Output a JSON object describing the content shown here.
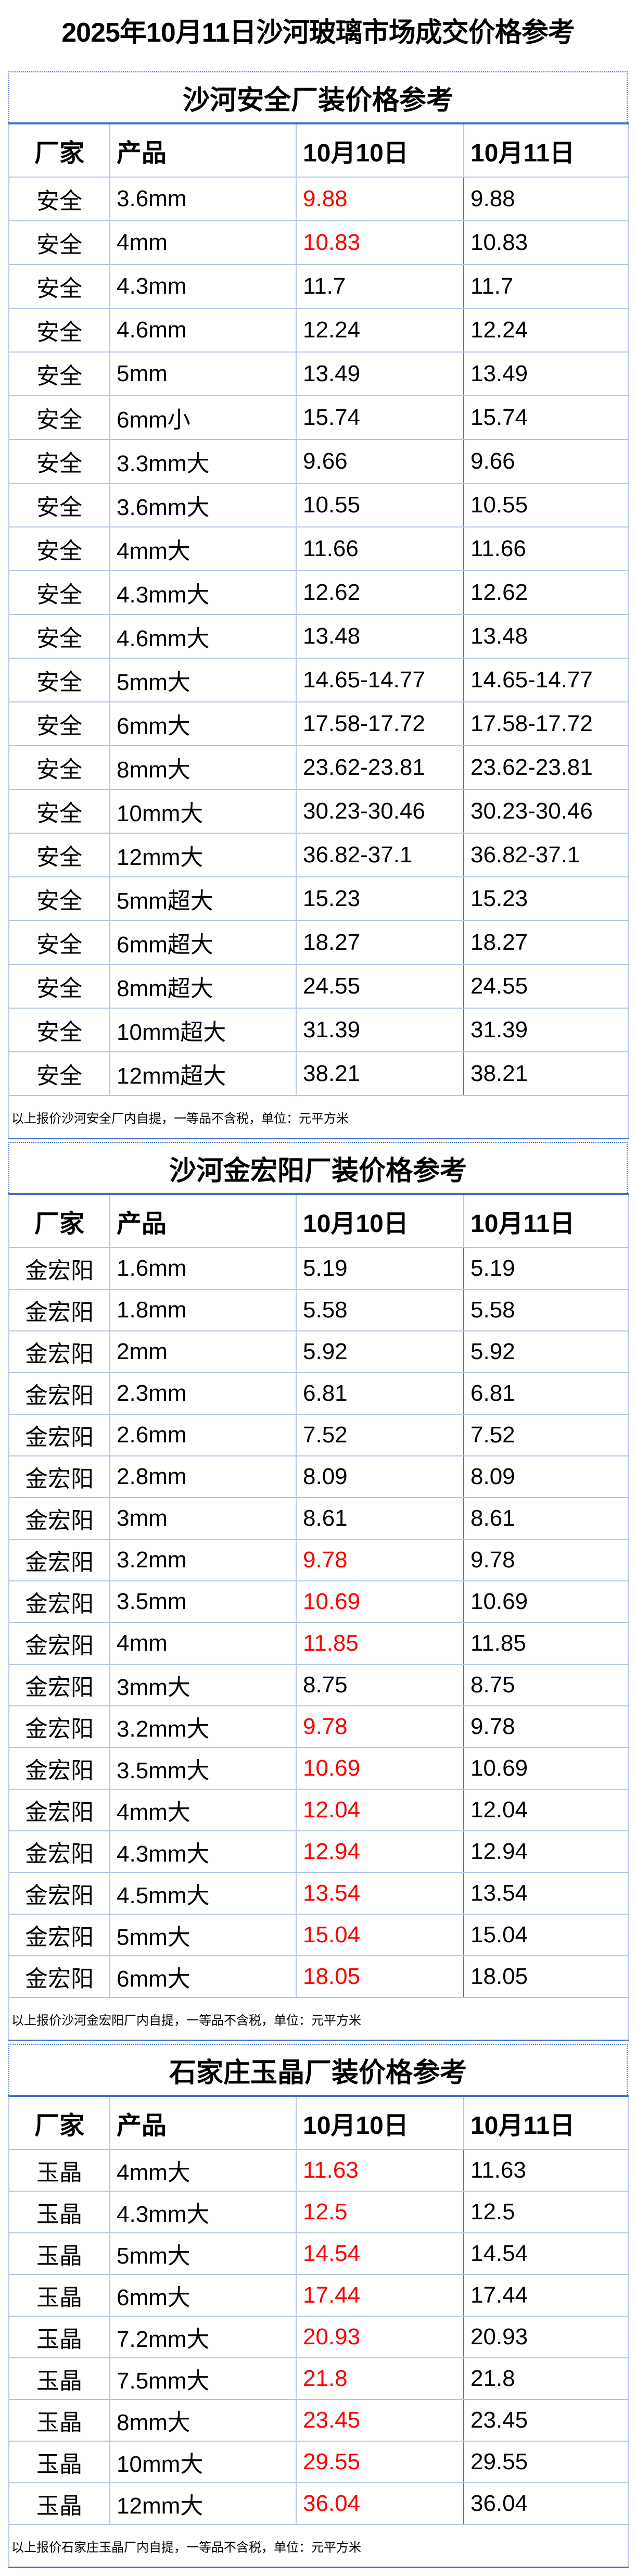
{
  "title": "2025年10月11日沙河玻璃市场成交价格参考",
  "columns": [
    "厂家",
    "产品",
    "10月10日",
    "10月11日"
  ],
  "colors": {
    "border": "#4472c4",
    "grid": "#b4c6e7",
    "highlight": "#ff0000"
  },
  "sections": [
    {
      "title": "沙河安全厂装价格参考",
      "note": "以上报价沙河安全厂内自提，一等品不含税，单位：元平方米",
      "rows": [
        [
          "安全",
          "3.6mm",
          "9.88",
          "9.88",
          true
        ],
        [
          "安全",
          "4mm",
          "10.83",
          "10.83",
          true
        ],
        [
          "安全",
          "4.3mm",
          "11.7",
          "11.7",
          false
        ],
        [
          "安全",
          "4.6mm",
          "12.24",
          "12.24",
          false
        ],
        [
          "安全",
          "5mm",
          "13.49",
          "13.49",
          false
        ],
        [
          "安全",
          "6mm小",
          "15.74",
          "15.74",
          false
        ],
        [
          "安全",
          "3.3mm大",
          "9.66",
          "9.66",
          false
        ],
        [
          "安全",
          "3.6mm大",
          "10.55",
          "10.55",
          false
        ],
        [
          "安全",
          "4mm大",
          "11.66",
          "11.66",
          false
        ],
        [
          "安全",
          "4.3mm大",
          "12.62",
          "12.62",
          false
        ],
        [
          "安全",
          "4.6mm大",
          "13.48",
          "13.48",
          false
        ],
        [
          "安全",
          "5mm大",
          "14.65-14.77",
          "14.65-14.77",
          false
        ],
        [
          "安全",
          "6mm大",
          "17.58-17.72",
          "17.58-17.72",
          false
        ],
        [
          "安全",
          "8mm大",
          "23.62-23.81",
          "23.62-23.81",
          false
        ],
        [
          "安全",
          "10mm大",
          "30.23-30.46",
          "30.23-30.46",
          false
        ],
        [
          "安全",
          "12mm大",
          "36.82-37.1",
          "36.82-37.1",
          false
        ],
        [
          "安全",
          "5mm超大",
          "15.23",
          "15.23",
          false
        ],
        [
          "安全",
          "6mm超大",
          "18.27",
          "18.27",
          false
        ],
        [
          "安全",
          "8mm超大",
          "24.55",
          "24.55",
          false
        ],
        [
          "安全",
          "10mm超大",
          "31.39",
          "31.39",
          false
        ],
        [
          "安全",
          "12mm超大",
          "38.21",
          "38.21",
          false
        ]
      ]
    },
    {
      "title": "沙河金宏阳厂装价格参考",
      "note": "以上报价沙河金宏阳厂内自提，一等品不含税，单位：元平方米",
      "rows": [
        [
          "金宏阳",
          "1.6mm",
          "5.19",
          "5.19",
          false
        ],
        [
          "金宏阳",
          "1.8mm",
          "5.58",
          "5.58",
          false
        ],
        [
          "金宏阳",
          "2mm",
          "5.92",
          "5.92",
          false
        ],
        [
          "金宏阳",
          "2.3mm",
          "6.81",
          "6.81",
          false
        ],
        [
          "金宏阳",
          "2.6mm",
          "7.52",
          "7.52",
          false
        ],
        [
          "金宏阳",
          "2.8mm",
          "8.09",
          "8.09",
          false
        ],
        [
          "金宏阳",
          "3mm",
          "8.61",
          "8.61",
          false
        ],
        [
          "金宏阳",
          "3.2mm",
          "9.78",
          "9.78",
          true
        ],
        [
          "金宏阳",
          "3.5mm",
          "10.69",
          "10.69",
          true
        ],
        [
          "金宏阳",
          "4mm",
          "11.85",
          "11.85",
          true
        ],
        [
          "金宏阳",
          "3mm大",
          "8.75",
          "8.75",
          false
        ],
        [
          "金宏阳",
          "3.2mm大",
          "9.78",
          "9.78",
          true
        ],
        [
          "金宏阳",
          "3.5mm大",
          "10.69",
          "10.69",
          true
        ],
        [
          "金宏阳",
          "4mm大",
          "12.04",
          "12.04",
          true
        ],
        [
          "金宏阳",
          "4.3mm大",
          "12.94",
          "12.94",
          true
        ],
        [
          "金宏阳",
          "4.5mm大",
          "13.54",
          "13.54",
          true
        ],
        [
          "金宏阳",
          "5mm大",
          "15.04",
          "15.04",
          true
        ],
        [
          "金宏阳",
          "6mm大",
          "18.05",
          "18.05",
          true
        ]
      ]
    },
    {
      "title": "石家庄玉晶厂装价格参考",
      "note": "以上报价石家庄玉晶厂内自提，一等品不含税，单位：元平方米",
      "rows": [
        [
          "玉晶",
          "4mm大",
          "11.63",
          "11.63",
          true
        ],
        [
          "玉晶",
          "4.3mm大",
          "12.5",
          "12.5",
          true
        ],
        [
          "玉晶",
          "5mm大",
          "14.54",
          "14.54",
          true
        ],
        [
          "玉晶",
          "6mm大",
          "17.44",
          "17.44",
          true
        ],
        [
          "玉晶",
          "7.2mm大",
          "20.93",
          "20.93",
          true
        ],
        [
          "玉晶",
          "7.5mm大",
          "21.8",
          "21.8",
          true
        ],
        [
          "玉晶",
          "8mm大",
          "23.45",
          "23.45",
          true
        ],
        [
          "玉晶",
          "10mm大",
          "29.55",
          "29.55",
          true
        ],
        [
          "玉晶",
          "12mm大",
          "36.04",
          "36.04",
          true
        ]
      ]
    }
  ]
}
